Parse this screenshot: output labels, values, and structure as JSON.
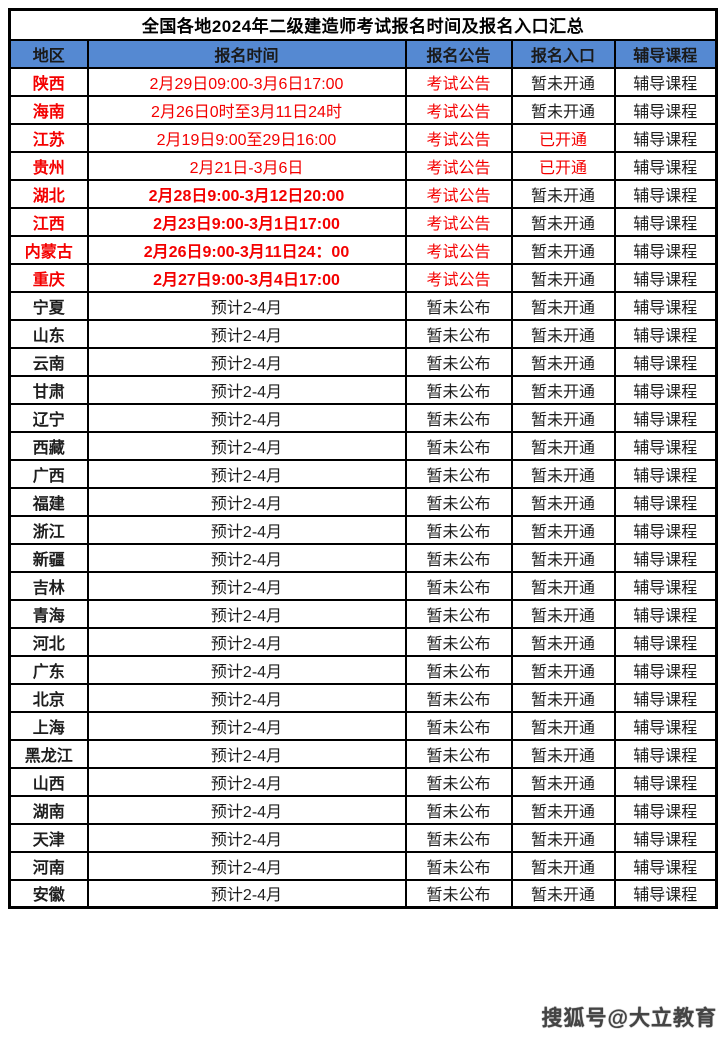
{
  "title": "全国各地2024年二级建造师考试报名时间及报名入口汇总",
  "header": {
    "region": "地区",
    "time": "报名时间",
    "notice": "报名公告",
    "entry": "报名入口",
    "course": "辅导课程"
  },
  "colors": {
    "header_bg": "#5589d2",
    "accent_red": "#f40000",
    "text_dark": "#1e1e1e",
    "border": "#000000"
  },
  "watermark": "搜狐号@大立教育",
  "rows": [
    {
      "region": "陕西",
      "time": "2月29日09:00-3月6日17:00",
      "notice": "考试公告",
      "entry": "暂未开通",
      "course": "辅导课程",
      "red": true,
      "time_bold": false,
      "entry_open": false
    },
    {
      "region": "海南",
      "time": "2月26日0时至3月11日24时",
      "notice": "考试公告",
      "entry": "暂未开通",
      "course": "辅导课程",
      "red": true,
      "time_bold": false,
      "entry_open": false
    },
    {
      "region": "江苏",
      "time": "2月19日9:00至29日16:00",
      "notice": "考试公告",
      "entry": "已开通",
      "course": "辅导课程",
      "red": true,
      "time_bold": false,
      "entry_open": true
    },
    {
      "region": "贵州",
      "time": "2月21日-3月6日",
      "notice": "考试公告",
      "entry": "已开通",
      "course": "辅导课程",
      "red": true,
      "time_bold": false,
      "entry_open": true
    },
    {
      "region": "湖北",
      "time": "2月28日9:00-3月12日20:00",
      "notice": "考试公告",
      "entry": "暂未开通",
      "course": "辅导课程",
      "red": true,
      "time_bold": true,
      "entry_open": false
    },
    {
      "region": "江西",
      "time": "2月23日9:00-3月1日17:00",
      "notice": "考试公告",
      "entry": "暂未开通",
      "course": "辅导课程",
      "red": true,
      "time_bold": true,
      "entry_open": false
    },
    {
      "region": "内蒙古",
      "time": "2月26日9:00-3月11日24：00",
      "notice": "考试公告",
      "entry": "暂未开通",
      "course": "辅导课程",
      "red": true,
      "time_bold": true,
      "entry_open": false
    },
    {
      "region": "重庆",
      "time": "2月27日9:00-3月4日17:00",
      "notice": "考试公告",
      "entry": "暂未开通",
      "course": "辅导课程",
      "red": true,
      "time_bold": true,
      "entry_open": false
    },
    {
      "region": "宁夏",
      "time": "预计2-4月",
      "notice": "暂未公布",
      "entry": "暂未开通",
      "course": "辅导课程",
      "red": false,
      "time_bold": false,
      "entry_open": false
    },
    {
      "region": "山东",
      "time": "预计2-4月",
      "notice": "暂未公布",
      "entry": "暂未开通",
      "course": "辅导课程",
      "red": false,
      "time_bold": false,
      "entry_open": false
    },
    {
      "region": "云南",
      "time": "预计2-4月",
      "notice": "暂未公布",
      "entry": "暂未开通",
      "course": "辅导课程",
      "red": false,
      "time_bold": false,
      "entry_open": false
    },
    {
      "region": "甘肃",
      "time": "预计2-4月",
      "notice": "暂未公布",
      "entry": "暂未开通",
      "course": "辅导课程",
      "red": false,
      "time_bold": false,
      "entry_open": false
    },
    {
      "region": "辽宁",
      "time": "预计2-4月",
      "notice": "暂未公布",
      "entry": "暂未开通",
      "course": "辅导课程",
      "red": false,
      "time_bold": false,
      "entry_open": false
    },
    {
      "region": "西藏",
      "time": "预计2-4月",
      "notice": "暂未公布",
      "entry": "暂未开通",
      "course": "辅导课程",
      "red": false,
      "time_bold": false,
      "entry_open": false
    },
    {
      "region": "广西",
      "time": "预计2-4月",
      "notice": "暂未公布",
      "entry": "暂未开通",
      "course": "辅导课程",
      "red": false,
      "time_bold": false,
      "entry_open": false
    },
    {
      "region": "福建",
      "time": "预计2-4月",
      "notice": "暂未公布",
      "entry": "暂未开通",
      "course": "辅导课程",
      "red": false,
      "time_bold": false,
      "entry_open": false
    },
    {
      "region": "浙江",
      "time": "预计2-4月",
      "notice": "暂未公布",
      "entry": "暂未开通",
      "course": "辅导课程",
      "red": false,
      "time_bold": false,
      "entry_open": false
    },
    {
      "region": "新疆",
      "time": "预计2-4月",
      "notice": "暂未公布",
      "entry": "暂未开通",
      "course": "辅导课程",
      "red": false,
      "time_bold": false,
      "entry_open": false
    },
    {
      "region": "吉林",
      "time": "预计2-4月",
      "notice": "暂未公布",
      "entry": "暂未开通",
      "course": "辅导课程",
      "red": false,
      "time_bold": false,
      "entry_open": false
    },
    {
      "region": "青海",
      "time": "预计2-4月",
      "notice": "暂未公布",
      "entry": "暂未开通",
      "course": "辅导课程",
      "red": false,
      "time_bold": false,
      "entry_open": false
    },
    {
      "region": "河北",
      "time": "预计2-4月",
      "notice": "暂未公布",
      "entry": "暂未开通",
      "course": "辅导课程",
      "red": false,
      "time_bold": false,
      "entry_open": false
    },
    {
      "region": "广东",
      "time": "预计2-4月",
      "notice": "暂未公布",
      "entry": "暂未开通",
      "course": "辅导课程",
      "red": false,
      "time_bold": false,
      "entry_open": false
    },
    {
      "region": "北京",
      "time": "预计2-4月",
      "notice": "暂未公布",
      "entry": "暂未开通",
      "course": "辅导课程",
      "red": false,
      "time_bold": false,
      "entry_open": false
    },
    {
      "region": "上海",
      "time": "预计2-4月",
      "notice": "暂未公布",
      "entry": "暂未开通",
      "course": "辅导课程",
      "red": false,
      "time_bold": false,
      "entry_open": false
    },
    {
      "region": "黑龙江",
      "time": "预计2-4月",
      "notice": "暂未公布",
      "entry": "暂未开通",
      "course": "辅导课程",
      "red": false,
      "time_bold": false,
      "entry_open": false
    },
    {
      "region": "山西",
      "time": "预计2-4月",
      "notice": "暂未公布",
      "entry": "暂未开通",
      "course": "辅导课程",
      "red": false,
      "time_bold": false,
      "entry_open": false
    },
    {
      "region": "湖南",
      "time": "预计2-4月",
      "notice": "暂未公布",
      "entry": "暂未开通",
      "course": "辅导课程",
      "red": false,
      "time_bold": false,
      "entry_open": false
    },
    {
      "region": "天津",
      "time": "预计2-4月",
      "notice": "暂未公布",
      "entry": "暂未开通",
      "course": "辅导课程",
      "red": false,
      "time_bold": false,
      "entry_open": false
    },
    {
      "region": "河南",
      "time": "预计2-4月",
      "notice": "暂未公布",
      "entry": "暂未开通",
      "course": "辅导课程",
      "red": false,
      "time_bold": false,
      "entry_open": false
    },
    {
      "region": "安徽",
      "time": "预计2-4月",
      "notice": "暂未公布",
      "entry": "暂未开通",
      "course": "辅导课程",
      "red": false,
      "time_bold": false,
      "entry_open": false
    }
  ]
}
